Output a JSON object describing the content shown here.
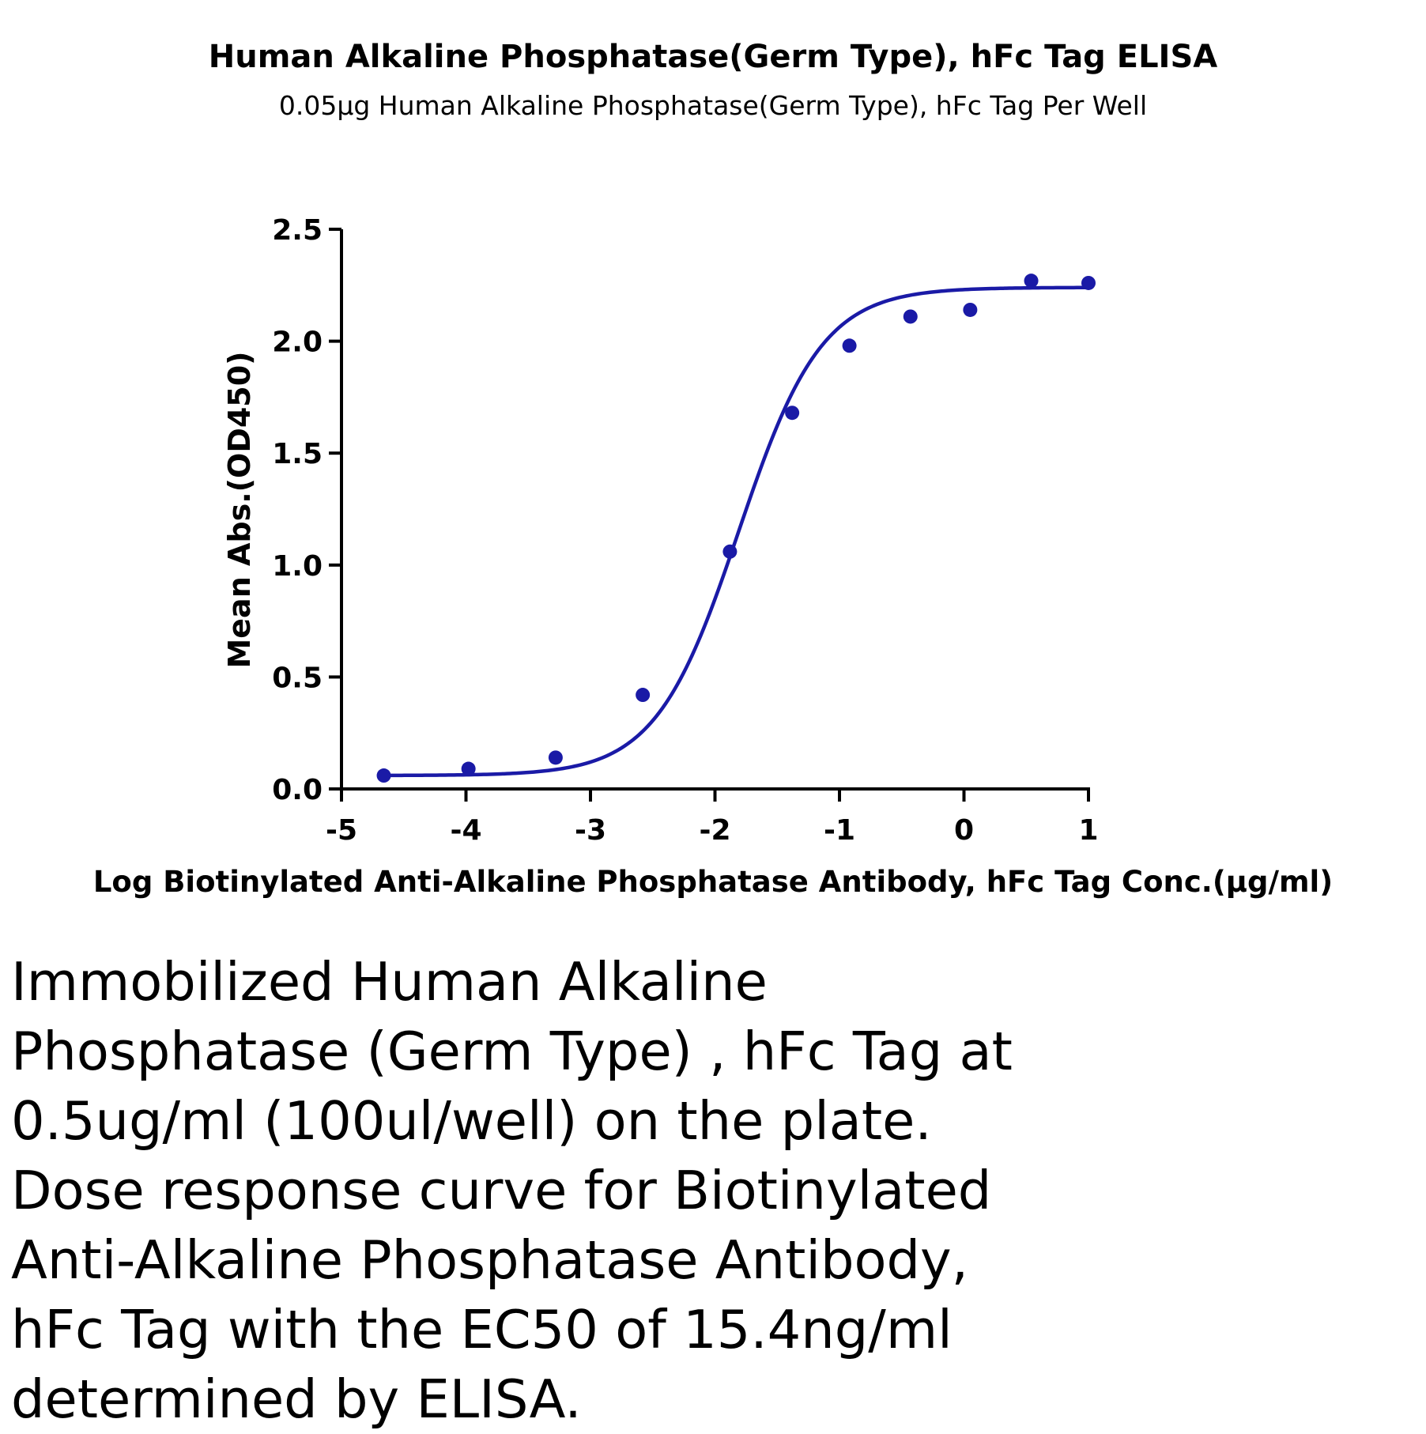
{
  "chart_data": {
    "type": "scatter",
    "title": "Human Alkaline Phosphatase(Germ Type), hFc Tag ELISA",
    "subtitle": "0.05μg Human Alkaline Phosphatase(Germ Type), hFc Tag Per Well",
    "xlabel": "Log Biotinylated Anti-Alkaline Phosphatase Antibody, hFc Tag Conc.(μg/ml)",
    "ylabel": "Mean Abs.(OD450)",
    "xlim": [
      -5,
      1
    ],
    "ylim": [
      0,
      2.5
    ],
    "x_ticks": [
      "-5",
      "-4",
      "-3",
      "-2",
      "-1",
      "0",
      "1"
    ],
    "y_ticks": [
      "0.0",
      "0.5",
      "1.0",
      "1.5",
      "2.0",
      "2.5"
    ],
    "grid": false,
    "color": "#1a1aa6",
    "series": [
      {
        "x": [
          -4.66,
          -3.98,
          -3.28,
          -2.58,
          -1.88,
          -1.38,
          -0.92,
          -0.43,
          0.05,
          0.54,
          1.0
        ],
        "y": [
          0.06,
          0.09,
          0.14,
          0.42,
          1.06,
          1.68,
          1.98,
          2.11,
          2.14,
          2.27,
          2.26
        ]
      }
    ],
    "fit_curve": {
      "model": "4PL",
      "bottom": 0.06,
      "top": 2.24,
      "log_ec50": -1.81,
      "hill_slope": 1.3
    }
  },
  "caption": "Immobilized Human Alkaline\nPhosphatase (Germ Type) , hFc Tag at\n0.5ug/ml (100ul/well) on the plate.\nDose response curve for Biotinylated\nAnti-Alkaline Phosphatase Antibody,\nhFc Tag with the EC50 of 15.4ng/ml\ndetermined by ELISA."
}
